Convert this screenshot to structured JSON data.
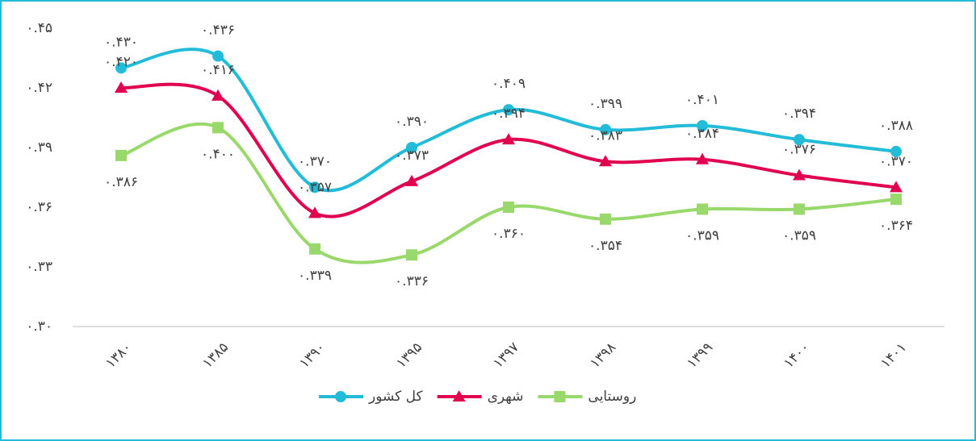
{
  "chart_data": {
    "type": "line",
    "categories": [
      "۱۳۸۰",
      "۱۳۸۵",
      "۱۳۹۰",
      "۱۳۹۵",
      "۱۳۹۷",
      "۱۳۹۸",
      "۱۳۹۹",
      "۱۴۰۰",
      "۱۴۰۱"
    ],
    "series": [
      {
        "name": "کل کشور",
        "color": "#22bcd9",
        "marker": "circle",
        "values": [
          0.43,
          0.436,
          0.37,
          0.39,
          0.409,
          0.399,
          0.401,
          0.394,
          0.388
        ],
        "value_labels": [
          "۰.۴۳۰",
          "۰.۴۳۶",
          "۰.۳۷۰",
          "۰.۳۹۰",
          "۰.۴۰۹",
          "۰.۳۹۹",
          "۰.۴۰۱",
          "۰.۳۹۴",
          "۰.۳۸۸"
        ]
      },
      {
        "name": "شهری",
        "color": "#e0004d",
        "marker": "triangle",
        "values": [
          0.42,
          0.416,
          0.357,
          0.373,
          0.394,
          0.383,
          0.384,
          0.376,
          0.37
        ],
        "value_labels": [
          "۰.۴۲۰",
          "۰.۴۱۶",
          "۰.۳۵۷",
          "۰.۳۷۳",
          "۰.۳۹۴",
          "۰.۳۸۳",
          "۰.۳۸۴",
          "۰.۳۷۶",
          "۰.۳۷۰"
        ]
      },
      {
        "name": "روستایی",
        "color": "#99d86b",
        "marker": "square",
        "values": [
          0.386,
          0.4,
          0.339,
          0.336,
          0.36,
          0.354,
          0.359,
          0.359,
          0.364
        ],
        "value_labels": [
          "۰.۳۸۶",
          "۰.۴۰۰",
          "۰.۳۳۹",
          "۰.۳۳۶",
          "۰.۳۶۰",
          "۰.۳۵۴",
          "۰.۳۵۹",
          "۰.۳۵۹",
          "۰.۳۶۴"
        ]
      }
    ],
    "ylim": [
      0.3,
      0.45
    ],
    "yticks": [
      {
        "value": 0.3,
        "label": "۰.۳۰"
      },
      {
        "value": 0.33,
        "label": "۰.۳۳"
      },
      {
        "value": 0.36,
        "label": "۰.۳۶"
      },
      {
        "value": 0.39,
        "label": "۰.۳۹"
      },
      {
        "value": 0.42,
        "label": "۰.۴۲"
      },
      {
        "value": 0.45,
        "label": "۰.۴۵"
      }
    ],
    "grid": false,
    "legend": "bottom"
  }
}
